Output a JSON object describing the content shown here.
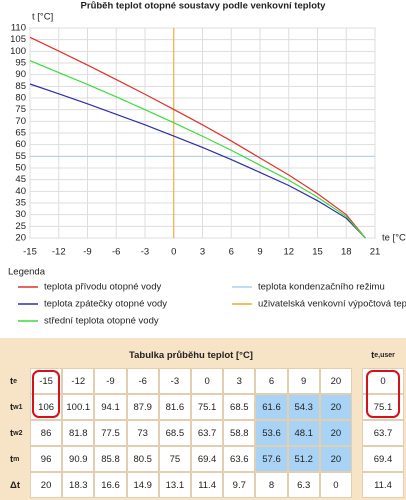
{
  "chart_data": {
    "type": "line",
    "title": "Průběh teplot otopné soustavy podle venkovní teploty",
    "ylabel": "t [°C]",
    "xlabel": "te [°C]",
    "x": [
      -15,
      -12,
      -9,
      -6,
      -3,
      0,
      3,
      6,
      9,
      12,
      15,
      18,
      20
    ],
    "series": [
      {
        "name": "teplota přívodu otopné vody",
        "color": "#e0322c",
        "values": [
          106,
          100.1,
          94.1,
          87.9,
          81.6,
          75.1,
          68.5,
          61.6,
          54.3,
          47,
          39,
          30,
          20
        ]
      },
      {
        "name": "teplota zpátečky otopné vody",
        "color": "#2b2fa8",
        "values": [
          86,
          81.8,
          77.5,
          73,
          68.5,
          63.7,
          58.8,
          53.6,
          48.1,
          42.5,
          36,
          28.5,
          20
        ]
      },
      {
        "name": "střední teplota otopné vody",
        "color": "#3ddc3d",
        "values": [
          96,
          90.9,
          85.8,
          80.5,
          75,
          69.4,
          63.6,
          57.6,
          51.2,
          44.8,
          37.5,
          29.2,
          20
        ]
      }
    ],
    "reference_lines": [
      {
        "name": "teplota kondenzačního režimu",
        "color": "#a8d0f0",
        "axis": "y",
        "value": 55
      },
      {
        "name": "uživatelská venkovní výpočtová teplota",
        "color": "#f5a623",
        "axis": "x",
        "value": 0
      }
    ],
    "xlim": [
      -15,
      21
    ],
    "xticks": [
      -15,
      -12,
      -9,
      -6,
      -3,
      0,
      3,
      6,
      9,
      12,
      15,
      18,
      21
    ],
    "ylim": [
      20,
      110
    ],
    "yticks": [
      20,
      25,
      30,
      35,
      40,
      45,
      50,
      55,
      60,
      65,
      70,
      75,
      80,
      85,
      90,
      95,
      100,
      105,
      110
    ],
    "grid": true,
    "legend_title": "Legenda"
  },
  "table": {
    "title": "Tabulka průběhu teplot [°C]",
    "rows": [
      {
        "label": "t",
        "sub": "e",
        "values": [
          -15,
          -12,
          -9,
          -6,
          -3,
          0,
          3,
          6,
          9,
          20
        ]
      },
      {
        "label": "t",
        "sub": "w1",
        "values": [
          106,
          100.1,
          94.1,
          87.9,
          81.6,
          75.1,
          68.5,
          61.6,
          54.3,
          20
        ]
      },
      {
        "label": "t",
        "sub": "w2",
        "values": [
          86,
          81.8,
          77.5,
          73,
          68.5,
          63.7,
          58.8,
          53.6,
          48.1,
          20
        ]
      },
      {
        "label": "t",
        "sub": "m",
        "values": [
          96,
          90.9,
          85.8,
          80.5,
          75,
          69.4,
          63.6,
          57.6,
          51.2,
          20
        ]
      },
      {
        "label": "Δt",
        "values": [
          20,
          18.3,
          16.6,
          14.9,
          13.1,
          11.4,
          9.7,
          8,
          6.3,
          0
        ]
      }
    ],
    "user": {
      "label": "t",
      "sub": "e,user",
      "values": [
        0,
        75.1,
        63.7,
        69.4,
        11.4
      ]
    }
  }
}
